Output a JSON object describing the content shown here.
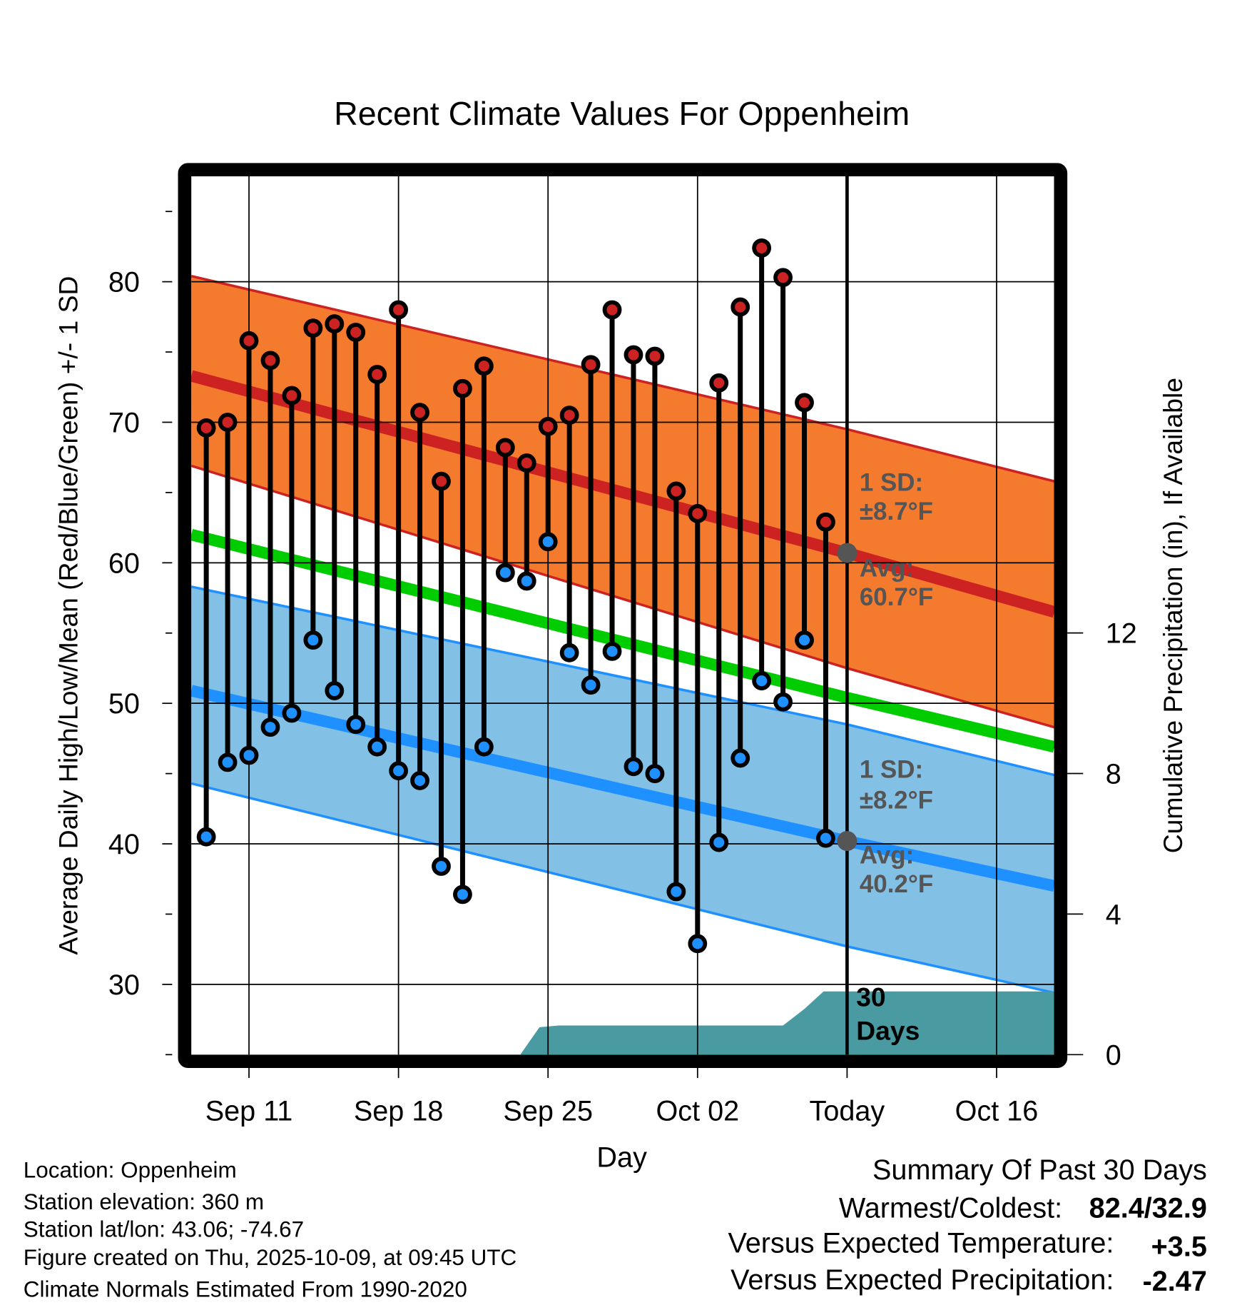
{
  "chart_data": {
    "type": "line",
    "title": "Recent Climate Values For Oppenheim",
    "xlabel": "Day",
    "ylabel": "Average Daily High/Low/Mean (Red/Blue/Green) +/- 1 SD",
    "y2label": "Cumulative Precipitation (in), If Available",
    "ylim": [
      25,
      87.5
    ],
    "y2lim": [
      0,
      14.8
    ],
    "yticks": [
      30,
      40,
      50,
      60,
      70,
      80
    ],
    "y2ticks": [
      0,
      4,
      8,
      12
    ],
    "xtick_labels": [
      {
        "day": 2,
        "label": "Sep 11"
      },
      {
        "day": 9,
        "label": "Sep 18"
      },
      {
        "day": 16,
        "label": "Sep 25"
      },
      {
        "day": 23,
        "label": "Oct 02"
      },
      {
        "day": 30,
        "label": "Today"
      },
      {
        "day": 37,
        "label": "Oct 16"
      }
    ],
    "xlim_days": [
      -0.7,
      39.7
    ],
    "dates": [
      "Sep 09",
      "Sep 10",
      "Sep 11",
      "Sep 12",
      "Sep 13",
      "Sep 14",
      "Sep 15",
      "Sep 16",
      "Sep 17",
      "Sep 18",
      "Sep 19",
      "Sep 20",
      "Sep 21",
      "Sep 22",
      "Sep 23",
      "Sep 24",
      "Sep 25",
      "Sep 26",
      "Sep 27",
      "Sep 28",
      "Sep 29",
      "Sep 30",
      "Oct 01",
      "Oct 02",
      "Oct 03",
      "Oct 04",
      "Oct 05",
      "Oct 06",
      "Oct 07",
      "Oct 08"
    ],
    "highs": [
      69.6,
      70.0,
      75.8,
      74.4,
      71.9,
      76.7,
      77.0,
      76.4,
      73.4,
      78.0,
      70.7,
      65.8,
      72.4,
      74.0,
      68.2,
      67.1,
      69.7,
      70.5,
      74.1,
      78.0,
      74.8,
      74.7,
      65.1,
      63.5,
      72.8,
      78.2,
      82.4,
      80.3,
      71.4,
      62.9
    ],
    "lows": [
      40.5,
      45.8,
      46.3,
      48.3,
      49.3,
      54.5,
      50.9,
      48.5,
      46.9,
      45.2,
      44.5,
      38.4,
      36.4,
      46.9,
      59.3,
      58.7,
      61.5,
      53.6,
      51.3,
      53.7,
      45.5,
      45.0,
      36.6,
      32.9,
      40.1,
      46.1,
      51.6,
      50.1,
      54.5,
      40.4
    ],
    "normals_days": [
      -0.7,
      30,
      39.7
    ],
    "normal_high": {
      "upper": [
        80.4,
        69.5,
        65.8
      ],
      "mean": [
        73.3,
        60.7,
        56.5
      ],
      "lower": [
        66.9,
        52.5,
        48.3
      ]
    },
    "normal_mean": [
      62.0,
      50.4,
      46.9
    ],
    "normal_low": {
      "upper": [
        58.3,
        48.5,
        44.9
      ],
      "mean": [
        50.9,
        40.2,
        37.0
      ],
      "lower": [
        44.3,
        32.7,
        29.4
      ]
    },
    "precip_cumulative": {
      "days": [
        -0.7,
        14.7,
        15.6,
        16.5,
        27,
        28,
        28.9,
        39.7
      ],
      "values": [
        0,
        0,
        0.78,
        0.83,
        0.83,
        1.3,
        1.8,
        1.8
      ]
    },
    "colors": {
      "high_band": "#F47A2E",
      "high": "#CC2222",
      "mean": "#00CC00",
      "low_band": "#82C0E6",
      "low": "#1E90FF",
      "precip": "#4A9AA2"
    },
    "annotations": {
      "high_sd_label": "1 SD:",
      "high_sd_value": "±8.7°F",
      "high_avg_label": "Avg:",
      "high_avg_value": "60.7°F",
      "low_sd_label": "1 SD:",
      "low_sd_value": "±8.2°F",
      "low_avg_label": "Avg:",
      "low_avg_value": "40.2°F",
      "precip_label_1": "30",
      "precip_label_2": "Days"
    }
  },
  "info": {
    "location": "Location: Oppenheim",
    "elevation": "Station elevation: 360 m",
    "latlon": "Station lat/lon: 43.06; -74.67",
    "created": "Figure created on Thu, 2025-10-09, at 09:45 UTC",
    "normals": "Climate Normals Estimated From 1990-2020"
  },
  "summary": {
    "title": "Summary Of Past 30 Days",
    "warmest_label": "Warmest/Coldest:",
    "warmest_value": "82.4/32.9",
    "temp_label": "Versus Expected Temperature:",
    "temp_value": "+3.5",
    "precip_label": "Versus Expected Precipitation:",
    "precip_value": "-2.47",
    "temp_color": "#CC2222",
    "precip_color": "#A0522D"
  }
}
